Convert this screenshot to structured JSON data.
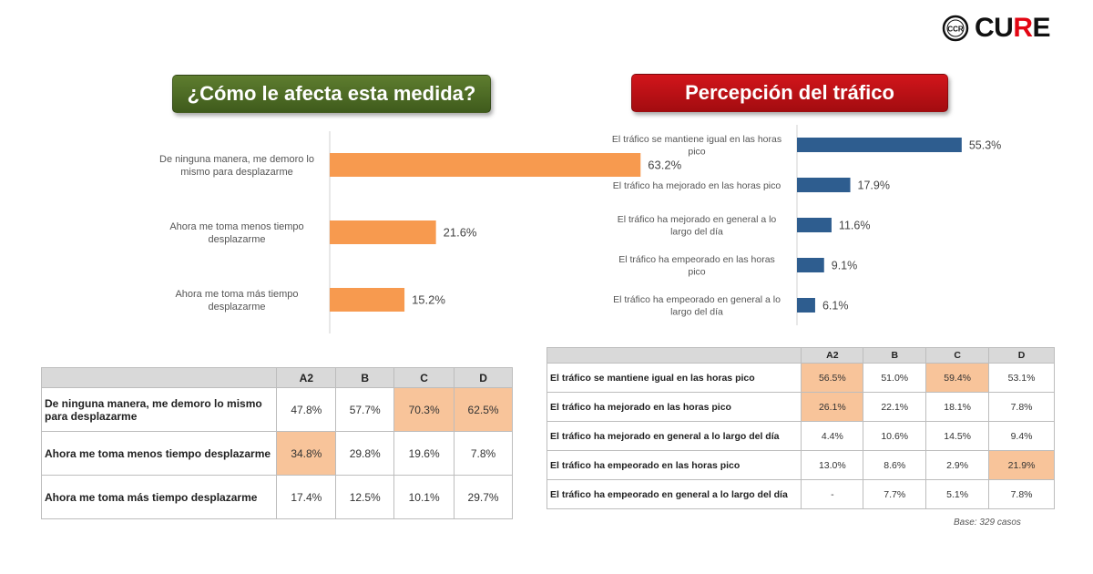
{
  "logo": {
    "text_before": "CU",
    "text_accent": "R",
    "text_after": "E",
    "badge": "CCR"
  },
  "colors": {
    "left_bar": "#f79a4f",
    "right_bar": "#2e5d8f",
    "highlight": "#f8c49a",
    "left_banner": "#4a6823",
    "right_banner": "#c0111a"
  },
  "left": {
    "title": "¿Cómo le afecta esta medida?",
    "table": {
      "columns": [
        "A2",
        "B",
        "C",
        "D"
      ],
      "rows": [
        {
          "label": "De ninguna manera, me demoro lo mismo para desplazarme",
          "values": [
            "47.8%",
            "57.7%",
            "70.3%",
            "62.5%"
          ],
          "highlight": [
            false,
            false,
            true,
            true
          ]
        },
        {
          "label": "Ahora me toma menos tiempo desplazarme",
          "values": [
            "34.8%",
            "29.8%",
            "19.6%",
            "7.8%"
          ],
          "highlight": [
            true,
            false,
            false,
            false
          ]
        },
        {
          "label": "Ahora me toma más tiempo desplazarme",
          "values": [
            "17.4%",
            "12.5%",
            "10.1%",
            "29.7%"
          ],
          "highlight": [
            false,
            false,
            false,
            false
          ]
        }
      ]
    }
  },
  "right": {
    "title": "Percepción del tráfico",
    "table": {
      "columns": [
        "A2",
        "B",
        "C",
        "D"
      ],
      "rows": [
        {
          "label": "El tráfico se mantiene igual en las horas pico",
          "values": [
            "56.5%",
            "51.0%",
            "59.4%",
            "53.1%"
          ],
          "highlight": [
            true,
            false,
            true,
            false
          ]
        },
        {
          "label": "El tráfico ha mejorado en las horas pico",
          "values": [
            "26.1%",
            "22.1%",
            "18.1%",
            "7.8%"
          ],
          "highlight": [
            true,
            false,
            false,
            false
          ]
        },
        {
          "label": "El tráfico ha mejorado en general a lo largo del día",
          "values": [
            "4.4%",
            "10.6%",
            "14.5%",
            "9.4%"
          ],
          "highlight": [
            false,
            false,
            false,
            false
          ]
        },
        {
          "label": "El tráfico ha empeorado en las horas pico",
          "values": [
            "13.0%",
            "8.6%",
            "2.9%",
            "21.9%"
          ],
          "highlight": [
            false,
            false,
            false,
            true
          ]
        },
        {
          "label": "El tráfico ha empeorado en general a lo largo del día",
          "values": [
            "-",
            "7.7%",
            "5.1%",
            "7.8%"
          ],
          "highlight": [
            false,
            false,
            false,
            false
          ]
        }
      ]
    },
    "base_note": "Base: 329 casos"
  },
  "chart_data": [
    {
      "type": "bar",
      "orientation": "horizontal",
      "categories": [
        [
          "De ninguna manera, me demoro lo",
          "mismo para desplazarme"
        ],
        [
          "Ahora me toma menos tiempo",
          "desplazarme"
        ],
        [
          "Ahora me toma más tiempo",
          "desplazarme"
        ]
      ],
      "values": [
        63.2,
        21.6,
        15.2
      ],
      "value_labels": [
        "63.2%",
        "21.6%",
        "15.2%"
      ],
      "xlim": [
        0,
        100
      ]
    },
    {
      "type": "bar",
      "orientation": "horizontal",
      "categories": [
        [
          "El tráfico se mantiene igual en las horas",
          "pico"
        ],
        [
          "El tráfico ha mejorado en las horas pico"
        ],
        [
          "El tráfico ha mejorado en general a lo",
          "largo del día"
        ],
        [
          "El tráfico ha empeorado en las horas",
          "pico"
        ],
        [
          "El tráfico ha empeorado en general a lo",
          "largo del día"
        ]
      ],
      "values": [
        55.3,
        17.9,
        11.6,
        9.1,
        6.1
      ],
      "value_labels": [
        "55.3%",
        "17.9%",
        "11.6%",
        "9.1%",
        "6.1%"
      ],
      "xlim": [
        0,
        100
      ]
    }
  ]
}
